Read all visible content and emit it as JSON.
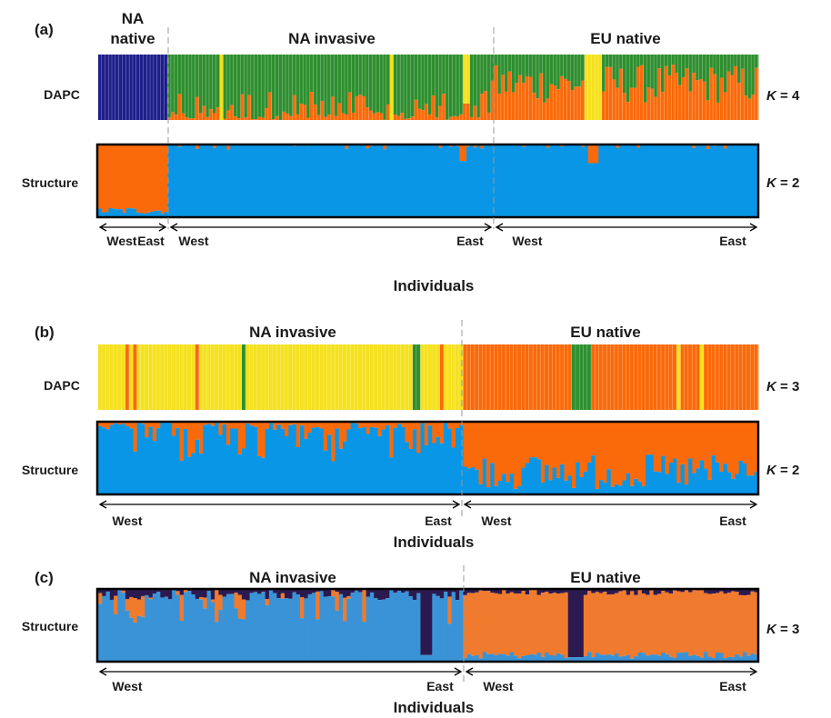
{
  "colors": {
    "na_native": "#1e1e8c",
    "green": "#2f8f2f",
    "orange": "#fa6a0a",
    "yellow": "#f5e11e",
    "blue": "#0a96e6",
    "c_blue": "#3a93d6",
    "c_orange": "#f07a2e",
    "c_purple": "#2b1a4f"
  },
  "common": {
    "west": "West",
    "east": "East",
    "individuals": "Individuals",
    "dapc": "DAPC",
    "structure": "Structure",
    "k_letter": "K",
    "k_eq": " = "
  },
  "panels": [
    {
      "label": "(a)",
      "groups": [
        "NA",
        "native",
        "NA invasive",
        "EU native"
      ],
      "rows": [
        {
          "method": "DAPC",
          "k": "4"
        },
        {
          "method": "Structure",
          "k": "2"
        }
      ]
    },
    {
      "label": "(b)",
      "groups": [
        "NA invasive",
        "EU native"
      ],
      "rows": [
        {
          "method": "DAPC",
          "k": "3"
        },
        {
          "method": "Structure",
          "k": "2"
        }
      ]
    },
    {
      "label": "(c)",
      "groups": [
        "NA invasive",
        "EU native"
      ],
      "rows": [
        {
          "method": "Structure",
          "k": "3"
        }
      ]
    }
  ]
}
